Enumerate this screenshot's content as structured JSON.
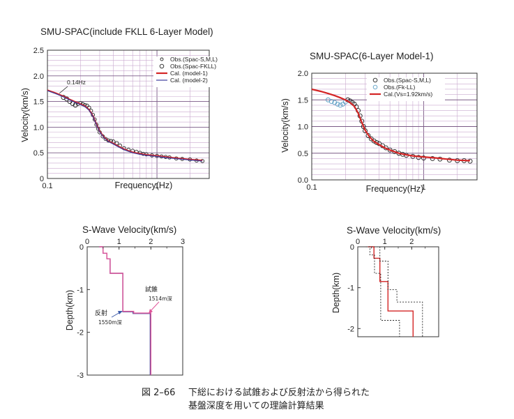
{
  "chart_data": [
    {
      "type": "line",
      "id": "spac1",
      "title": "SMU-SPAC(include FKLL 6-Layer Model)",
      "xlabel": "Frequency(Hz)",
      "ylabel": "Velocity(km/s)",
      "xscale": "log",
      "xlim": [
        0.1,
        3
      ],
      "ylim": [
        0,
        2.5
      ],
      "xticks": [
        "0.1",
        "1"
      ],
      "yticks": [
        "0",
        "0.5",
        "1.0",
        "1.5",
        "2.0",
        "2.5"
      ],
      "grid": true,
      "legend_position": "top-right",
      "annotations": [
        {
          "text": "0.14Hz",
          "x": 0.14,
          "y": 1.62
        }
      ],
      "series": [
        {
          "name": "Obs.(Spac-S,M,L)",
          "kind": "scatter-small",
          "color": "#222222",
          "x": [
            0.19,
            0.2,
            0.21,
            0.22,
            0.23,
            0.24,
            0.25,
            0.26,
            0.27,
            0.28,
            0.29,
            0.3,
            0.32,
            0.34,
            0.36,
            0.38,
            0.4,
            0.43,
            0.46,
            0.5,
            0.55,
            0.6,
            0.65,
            0.7,
            0.75,
            0.8,
            0.9,
            1.0,
            1.1,
            1.2,
            1.3,
            1.5,
            1.7,
            2.0,
            2.3,
            2.6
          ],
          "y": [
            1.45,
            1.47,
            1.45,
            1.43,
            1.42,
            1.38,
            1.32,
            1.24,
            1.15,
            1.05,
            0.97,
            0.9,
            0.82,
            0.77,
            0.74,
            0.73,
            0.72,
            0.69,
            0.64,
            0.59,
            0.56,
            0.54,
            0.52,
            0.5,
            0.48,
            0.47,
            0.45,
            0.44,
            0.43,
            0.42,
            0.41,
            0.39,
            0.38,
            0.37,
            0.35,
            0.34
          ]
        },
        {
          "name": "Obs.(Spac-FKLL)",
          "kind": "scatter-open",
          "color": "#222222",
          "x": [
            0.14,
            0.15,
            0.16,
            0.17,
            0.18
          ],
          "y": [
            1.58,
            1.55,
            1.5,
            1.46,
            1.43
          ]
        },
        {
          "name": "Cal. (model-1)",
          "kind": "line",
          "color": "#d42525",
          "x": [
            0.1,
            0.12,
            0.14,
            0.16,
            0.18,
            0.2,
            0.22,
            0.24,
            0.26,
            0.28,
            0.3,
            0.33,
            0.36,
            0.4,
            0.45,
            0.5,
            0.6,
            0.7,
            0.8,
            1.0,
            1.3,
            1.6,
            2.0,
            2.6
          ],
          "y": [
            1.72,
            1.66,
            1.6,
            1.54,
            1.49,
            1.45,
            1.41,
            1.34,
            1.22,
            1.06,
            0.92,
            0.8,
            0.73,
            0.68,
            0.62,
            0.57,
            0.51,
            0.48,
            0.46,
            0.44,
            0.41,
            0.39,
            0.37,
            0.35
          ]
        },
        {
          "name": "Cal. (model-2)",
          "kind": "line",
          "color": "#3c3c9c",
          "x": [
            0.1,
            0.12,
            0.14,
            0.16,
            0.18,
            0.2,
            0.22,
            0.24,
            0.26,
            0.28,
            0.3,
            0.33,
            0.36,
            0.4,
            0.45,
            0.5,
            0.6,
            0.7,
            0.8,
            1.0,
            1.3,
            1.6,
            2.0,
            2.6
          ],
          "y": [
            1.71,
            1.65,
            1.59,
            1.53,
            1.48,
            1.44,
            1.4,
            1.33,
            1.21,
            1.05,
            0.91,
            0.79,
            0.72,
            0.67,
            0.61,
            0.56,
            0.5,
            0.47,
            0.45,
            0.43,
            0.4,
            0.38,
            0.36,
            0.34
          ]
        }
      ]
    },
    {
      "type": "line",
      "id": "spac2",
      "title": "SMU-SPAC(6-Layer Model-1)",
      "xlabel": "Frequency(Hz)",
      "ylabel": "Velocity(km/s)",
      "xscale": "log",
      "xlim": [
        0.1,
        3
      ],
      "ylim": [
        0,
        2.0
      ],
      "xticks": [
        "0.1",
        "1"
      ],
      "yticks": [
        "0.0",
        "0.5",
        "1.0",
        "1.5",
        "2.0"
      ],
      "grid": true,
      "legend_position": "top-right",
      "series": [
        {
          "name": "Obs.(Spac-S,M,L)",
          "kind": "scatter-open",
          "color": "#222222",
          "x": [
            0.21,
            0.22,
            0.23,
            0.24,
            0.25,
            0.26,
            0.27,
            0.28,
            0.29,
            0.3,
            0.32,
            0.34,
            0.36,
            0.38,
            0.4,
            0.43,
            0.46,
            0.5,
            0.55,
            0.6,
            0.65,
            0.7,
            0.8,
            0.9,
            1.0,
            1.2,
            1.4,
            1.7,
            2.0,
            2.3,
            2.6
          ],
          "y": [
            1.5,
            1.48,
            1.45,
            1.42,
            1.37,
            1.3,
            1.2,
            1.1,
            1.0,
            0.92,
            0.83,
            0.77,
            0.73,
            0.7,
            0.68,
            0.64,
            0.6,
            0.56,
            0.53,
            0.5,
            0.48,
            0.46,
            0.44,
            0.42,
            0.41,
            0.4,
            0.39,
            0.37,
            0.36,
            0.36,
            0.35
          ]
        },
        {
          "name": "Obs.(Fk-LL)",
          "kind": "scatter-open",
          "color": "#5b9fc4",
          "x": [
            0.14,
            0.15,
            0.16,
            0.17,
            0.18,
            0.19,
            0.2
          ],
          "y": [
            1.5,
            1.47,
            1.45,
            1.42,
            1.4,
            1.42,
            1.46
          ]
        },
        {
          "name": "Cal.(Vs=1.92km/s)",
          "kind": "line",
          "color": "#d42525",
          "x": [
            0.1,
            0.12,
            0.14,
            0.16,
            0.18,
            0.2,
            0.22,
            0.24,
            0.26,
            0.28,
            0.3,
            0.33,
            0.36,
            0.4,
            0.45,
            0.5,
            0.6,
            0.7,
            0.8,
            1.0,
            1.3,
            1.6,
            2.0,
            2.6
          ],
          "y": [
            1.7,
            1.66,
            1.62,
            1.58,
            1.54,
            1.5,
            1.45,
            1.38,
            1.25,
            1.08,
            0.93,
            0.8,
            0.72,
            0.66,
            0.6,
            0.56,
            0.5,
            0.47,
            0.45,
            0.43,
            0.41,
            0.39,
            0.37,
            0.36
          ]
        }
      ]
    },
    {
      "type": "line",
      "id": "sw1",
      "title": "S-Wave Velocity(km/s)",
      "ylabel": "Depth(km)",
      "xlim": [
        0,
        3
      ],
      "ylim": [
        -3,
        0
      ],
      "xticks": [
        "0",
        "1",
        "2",
        "3"
      ],
      "yticks": [
        "0",
        "-1",
        "-2",
        "-3"
      ],
      "annotations": [
        {
          "text": "試錐",
          "x": 2.05,
          "y": -1.18
        },
        {
          "text": "1514m深",
          "x": 2.1,
          "y": -1.35
        },
        {
          "text": "反射",
          "x": 0.5,
          "y": -1.58
        },
        {
          "text": "1550m深",
          "x": 0.55,
          "y": -1.75
        }
      ],
      "series": [
        {
          "name": "",
          "color": "#4b4b9c",
          "x": [
            0.38,
            0.5,
            0.5,
            0.62,
            0.62,
            0.72,
            0.72,
            1.12,
            1.12,
            1.44,
            1.44,
            1.98,
            1.98
          ],
          "y": [
            0,
            0,
            -0.15,
            -0.15,
            -0.28,
            -0.28,
            -0.62,
            -0.62,
            -1.52,
            -1.52,
            -1.56,
            -1.56,
            -3
          ]
        },
        {
          "name": "",
          "color": "#e0569a",
          "x": [
            0.38,
            0.5,
            0.5,
            0.62,
            0.62,
            0.72,
            0.72,
            1.12,
            1.12,
            1.46,
            1.46,
            2.0,
            2.0
          ],
          "y": [
            0,
            0,
            -0.15,
            -0.15,
            -0.28,
            -0.28,
            -0.62,
            -0.62,
            -1.51,
            -1.51,
            -1.55,
            -1.55,
            -3
          ]
        }
      ]
    },
    {
      "type": "line",
      "id": "sw2",
      "title": "S-Wave Velocity(km/s)",
      "ylabel": "Depth(km)",
      "xlim": [
        0,
        3
      ],
      "ylim": [
        -2.2,
        0
      ],
      "xticks": [
        "0",
        "1",
        "2"
      ],
      "yticks": [
        "0",
        "-1",
        "-2"
      ],
      "series": [
        {
          "name": "",
          "color": "#d42525",
          "dash": false,
          "x": [
            0.38,
            0.6,
            0.6,
            0.82,
            0.82,
            1.12,
            1.12,
            2.05,
            2.05
          ],
          "y": [
            0,
            0,
            -0.28,
            -0.28,
            -0.85,
            -0.85,
            -1.57,
            -1.57,
            -2.2
          ]
        },
        {
          "name": "",
          "color": "#222222",
          "dash": true,
          "x": [
            0.3,
            0.45,
            0.45,
            0.62,
            0.62,
            0.85,
            0.85,
            1.55,
            1.55
          ],
          "y": [
            0,
            0,
            -0.2,
            -0.2,
            -0.65,
            -0.65,
            -1.8,
            -1.8,
            -2.2
          ]
        },
        {
          "name": "",
          "color": "#222222",
          "dash": true,
          "x": [
            0.5,
            0.82,
            0.82,
            1.12,
            1.12,
            1.45,
            1.45,
            2.4,
            2.4
          ],
          "y": [
            0,
            0,
            -0.35,
            -0.35,
            -1.05,
            -1.05,
            -1.35,
            -1.35,
            -2.2
          ]
        }
      ]
    }
  ],
  "caption": {
    "label": "図 2–66",
    "line1": "下総における試錐および反射法から得られた",
    "line2": "基盤深度を用いての理論計算結果"
  }
}
